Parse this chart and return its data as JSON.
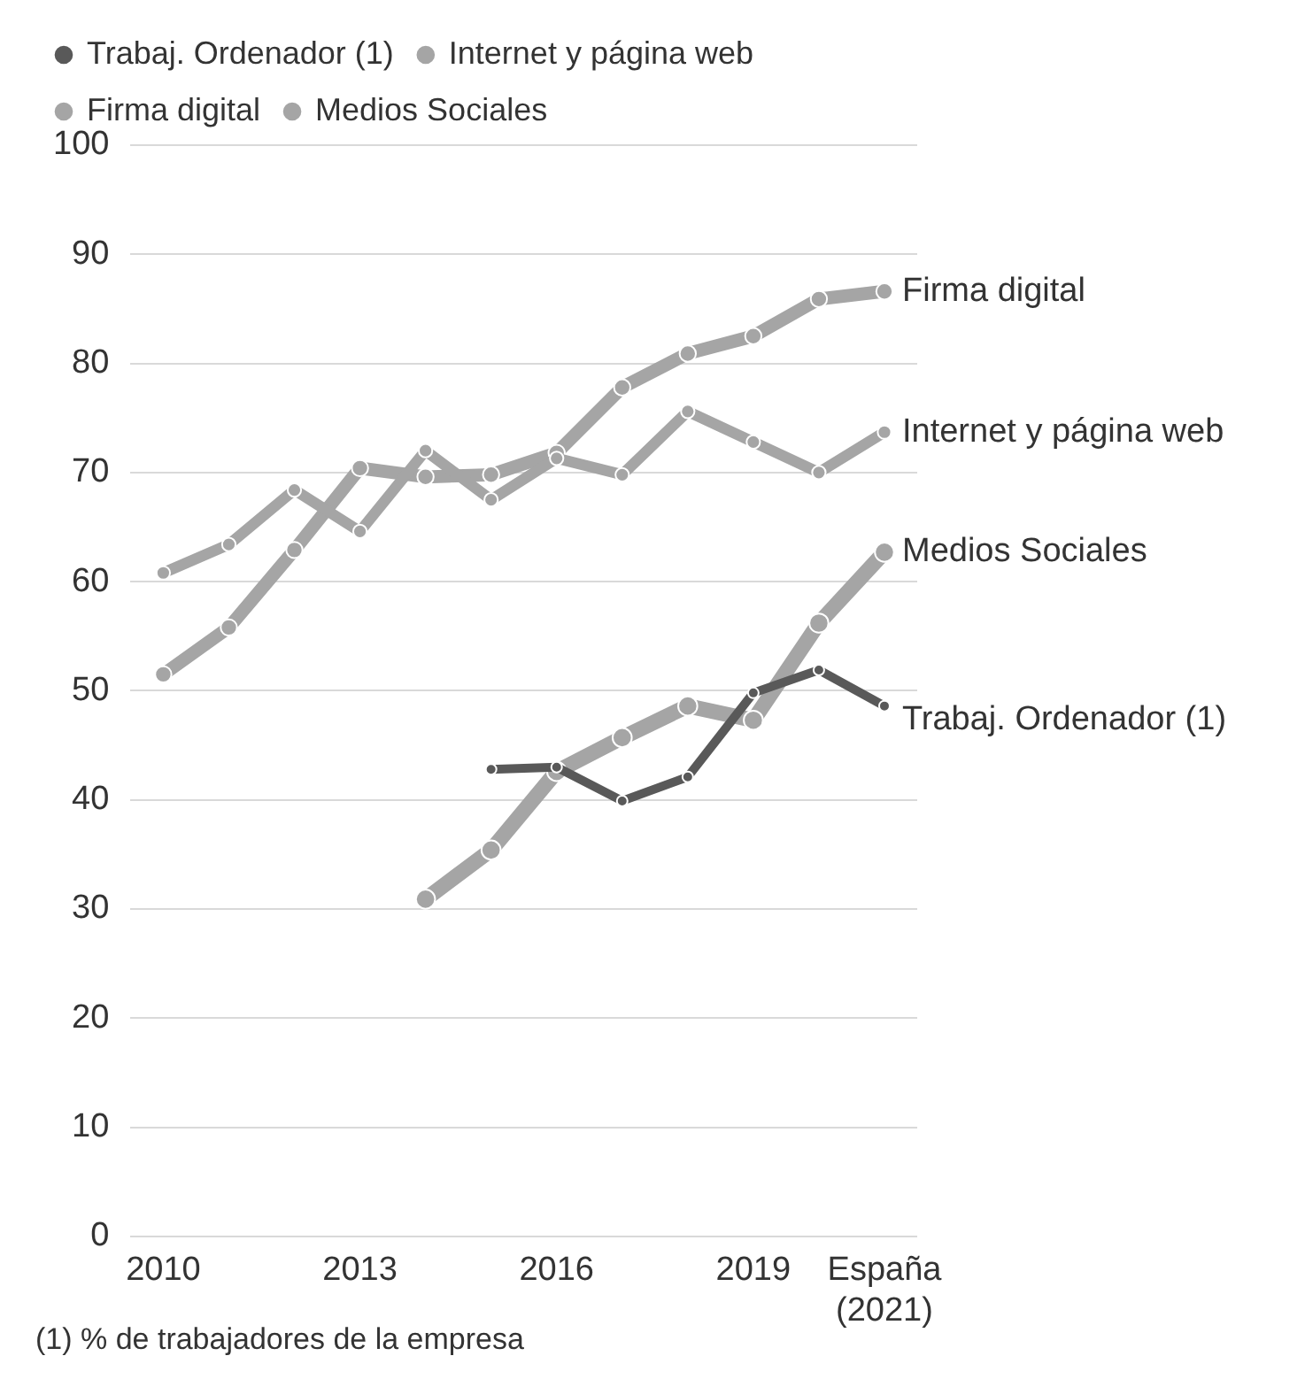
{
  "chart_data": {
    "type": "line",
    "categories": [
      "2010",
      null,
      null,
      "2013",
      null,
      null,
      "2016",
      null,
      null,
      "2019",
      null,
      "España (2021)"
    ],
    "series": [
      {
        "name": "Trabaj. Ordenador (1)",
        "color": "#595959",
        "values": [
          null,
          null,
          null,
          null,
          null,
          42.8,
          43.0,
          39.9,
          42.1,
          49.8,
          51.9,
          48.6
        ]
      },
      {
        "name": "Internet y página web",
        "color": "#a5a5a5",
        "values": [
          60.8,
          63.4,
          68.4,
          64.6,
          72.0,
          67.5,
          71.3,
          69.8,
          75.6,
          72.8,
          70.0,
          73.7
        ]
      },
      {
        "name": "Firma digital",
        "color": "#a5a5a5",
        "values": [
          51.5,
          55.8,
          62.9,
          70.4,
          69.6,
          69.8,
          71.8,
          77.8,
          80.9,
          82.5,
          85.9,
          86.6
        ]
      },
      {
        "name": "Medios Sociales",
        "color": "#a5a5a5",
        "values": [
          null,
          null,
          null,
          null,
          30.9,
          35.4,
          42.6,
          45.7,
          48.6,
          47.3,
          56.2,
          62.7
        ]
      }
    ],
    "ylim": [
      0,
      100
    ],
    "yticks": [
      0,
      10,
      20,
      30,
      40,
      50,
      60,
      70,
      80,
      90,
      100
    ],
    "grid": "y",
    "legend": "top left",
    "marker": "circle",
    "line_style": "solid",
    "annotations": [
      "(1) % de trabajadores de la empresa"
    ]
  }
}
